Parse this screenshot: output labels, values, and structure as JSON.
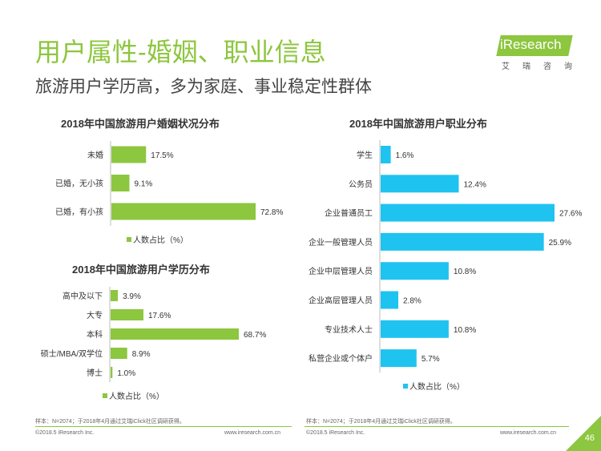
{
  "header": {
    "title": "用户属性-婚姻、职业信息",
    "subtitle": "旅游用户学历高，多为家庭、事业稳定性群体",
    "logo_text": "iResearch",
    "logo_sub": "艾瑞咨询"
  },
  "colors": {
    "green": "#8DC63F",
    "blue": "#1FC3F0"
  },
  "chart_data": [
    {
      "type": "bar",
      "orientation": "horizontal",
      "title": "2018年中国旅游用户婚姻状况分布",
      "categories": [
        "未婚",
        "已婚，无小孩",
        "已婚，有小孩"
      ],
      "values": [
        17.5,
        9.1,
        72.8
      ],
      "value_labels": [
        "17.5%",
        "9.1%",
        "72.8%"
      ],
      "series_name": "人数占比（%）",
      "color": "#8DC63F",
      "xlim": [
        0,
        80
      ],
      "legend": "bottom"
    },
    {
      "type": "bar",
      "orientation": "horizontal",
      "title": "2018年中国旅游用户学历分布",
      "categories": [
        "高中及以下",
        "大专",
        "本科",
        "硕士/MBA/双学位",
        "博士"
      ],
      "values": [
        3.9,
        17.6,
        68.7,
        8.9,
        1.0
      ],
      "value_labels": [
        "3.9%",
        "17.6%",
        "68.7%",
        "8.9%",
        "1.0%"
      ],
      "series_name": "人数占比（%）",
      "color": "#8DC63F",
      "xlim": [
        0,
        80
      ],
      "legend": "bottom"
    },
    {
      "type": "bar",
      "orientation": "horizontal",
      "title": "2018年中国旅游用户职业分布",
      "categories": [
        "学生",
        "公务员",
        "企业普通员工",
        "企业一般管理人员",
        "企业中层管理人员",
        "企业高层管理人员",
        "专业技术人士",
        "私营企业或个体户"
      ],
      "values": [
        1.6,
        12.4,
        27.6,
        25.9,
        10.8,
        2.8,
        10.8,
        5.7
      ],
      "value_labels": [
        "1.6%",
        "12.4%",
        "27.6%",
        "25.9%",
        "10.8%",
        "2.8%",
        "10.8%",
        "5.7%"
      ],
      "series_name": "人数占比（%）",
      "color": "#1FC3F0",
      "xlim": [
        0,
        30
      ],
      "legend": "bottom"
    }
  ],
  "footer": {
    "source_left": "样本：N=2074；于2018年4月通过艾瑞iClick社区调研获得。",
    "source_right": "样本：N=2074；于2018年4月通过艾瑞iClick社区调研获得。",
    "copyright_left": "©2018.5 iResearch Inc.",
    "url_left": "www.iresearch.com.cn",
    "copyright_right": "©2018.5 iResearch Inc.",
    "url_right": "www.iresearch.com.cn",
    "page_number": "46"
  }
}
